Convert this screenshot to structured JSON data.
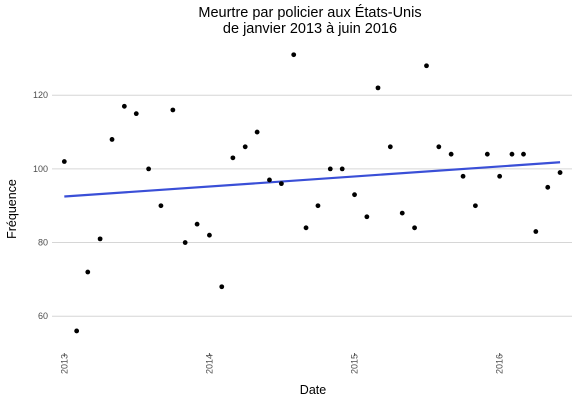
{
  "chart_data": {
    "type": "scatter",
    "title": [
      "Meurtre par policier aux États-Unis",
      "de janvier 2013 à juin 2016"
    ],
    "xlabel": "Date",
    "ylabel": "Fréquence",
    "xlim": [
      "2012-12-01",
      "2016-07-01"
    ],
    "ylim": [
      53,
      135
    ],
    "x_ticks": [
      "2013",
      "2014",
      "2015",
      "2016"
    ],
    "y_ticks": [
      60,
      80,
      100,
      120
    ],
    "grid": "horizontal",
    "legend": "none",
    "colors": {
      "points": "#000000",
      "trend": "#3a4fd7",
      "grid": "#d6d6d6"
    },
    "series": [
      {
        "x": [
          "2013-01-01",
          "2013-02-01",
          "2013-03-01",
          "2013-04-01",
          "2013-05-01",
          "2013-06-01",
          "2013-07-01",
          "2013-08-01",
          "2013-09-01",
          "2013-10-01",
          "2013-11-01",
          "2013-12-01",
          "2014-01-01",
          "2014-02-01",
          "2014-03-01",
          "2014-04-01",
          "2014-05-01",
          "2014-06-01",
          "2014-07-01",
          "2014-08-01",
          "2014-09-01",
          "2014-10-01",
          "2014-11-01",
          "2014-12-01",
          "2015-01-01",
          "2015-02-01",
          "2015-03-01",
          "2015-04-01",
          "2015-05-01",
          "2015-06-01",
          "2015-07-01",
          "2015-08-01",
          "2015-09-01",
          "2015-10-01",
          "2015-11-01",
          "2015-12-01",
          "2016-01-01",
          "2016-02-01",
          "2016-03-01",
          "2016-04-01",
          "2016-05-01",
          "2016-06-01"
        ],
        "values": [
          102,
          56,
          72,
          81,
          108,
          117,
          115,
          100,
          90,
          116,
          80,
          85,
          82,
          68,
          103,
          106,
          110,
          97,
          96,
          131,
          84,
          90,
          100,
          100,
          93,
          87,
          122,
          106,
          88,
          84,
          128,
          106,
          104,
          98,
          90,
          104,
          98,
          104,
          104,
          83,
          95,
          99
        ]
      }
    ],
    "trend": {
      "type": "linear",
      "x": [
        "2013-01-01",
        "2016-06-01"
      ],
      "values": [
        92.5,
        101.8
      ]
    }
  }
}
